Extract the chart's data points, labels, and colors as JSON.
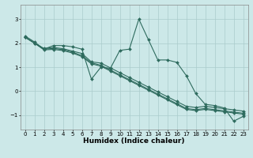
{
  "xlabel": "Humidex (Indice chaleur)",
  "bg_color": "#cce8e8",
  "grid_color": "#aacccc",
  "line_color": "#2e6b5e",
  "xlim": [
    -0.5,
    23.5
  ],
  "ylim": [
    -1.6,
    3.6
  ],
  "xticks": [
    0,
    1,
    2,
    3,
    4,
    5,
    6,
    7,
    8,
    9,
    10,
    11,
    12,
    13,
    14,
    15,
    16,
    17,
    18,
    19,
    20,
    21,
    22,
    23
  ],
  "yticks": [
    -1,
    0,
    1,
    2,
    3
  ],
  "line1_x": [
    0,
    1,
    2,
    3,
    4,
    5,
    6,
    7,
    8,
    9,
    10,
    11,
    12,
    13,
    14,
    15,
    16,
    17,
    18,
    19,
    20,
    21,
    22,
    23
  ],
  "line1_y": [
    2.3,
    2.05,
    1.75,
    1.9,
    1.9,
    1.85,
    1.75,
    0.5,
    1.0,
    0.95,
    1.7,
    1.75,
    3.0,
    2.15,
    1.3,
    1.3,
    1.2,
    0.65,
    -0.1,
    -0.55,
    -0.6,
    -0.7,
    -1.25,
    -1.05
  ],
  "line2_x": [
    0,
    1,
    2,
    3,
    4,
    5,
    6,
    7,
    8,
    9,
    10,
    11,
    12,
    13,
    14,
    15,
    16,
    17,
    18,
    19,
    20,
    21,
    22,
    23
  ],
  "line2_y": [
    2.25,
    2.0,
    1.78,
    1.82,
    1.77,
    1.67,
    1.57,
    1.22,
    1.17,
    0.97,
    0.77,
    0.57,
    0.37,
    0.17,
    -0.03,
    -0.23,
    -0.43,
    -0.63,
    -0.68,
    -0.63,
    -0.68,
    -0.73,
    -0.78,
    -0.83
  ],
  "line3_x": [
    0,
    1,
    2,
    3,
    4,
    5,
    6,
    7,
    8,
    9,
    10,
    11,
    12,
    13,
    14,
    15,
    16,
    17,
    18,
    19,
    20,
    21,
    22,
    23
  ],
  "line3_y": [
    2.25,
    2.0,
    1.75,
    1.78,
    1.73,
    1.63,
    1.48,
    1.18,
    1.08,
    0.88,
    0.68,
    0.48,
    0.28,
    0.08,
    -0.12,
    -0.32,
    -0.52,
    -0.72,
    -0.77,
    -0.72,
    -0.77,
    -0.82,
    -0.87,
    -0.92
  ],
  "line4_x": [
    0,
    1,
    2,
    3,
    4,
    5,
    6,
    7,
    8,
    9,
    10,
    11,
    12,
    13,
    14,
    15,
    16,
    17,
    18,
    19,
    20,
    21,
    22,
    23
  ],
  "line4_y": [
    2.25,
    2.0,
    1.72,
    1.74,
    1.69,
    1.59,
    1.44,
    1.14,
    1.04,
    0.84,
    0.64,
    0.44,
    0.24,
    0.04,
    -0.16,
    -0.36,
    -0.56,
    -0.76,
    -0.81,
    -0.76,
    -0.81,
    -0.86,
    -0.91,
    -0.96
  ],
  "marker": "D",
  "markersize": 2.0,
  "linewidth": 0.8,
  "axis_fontsize": 6.5,
  "tick_fontsize": 5.0
}
